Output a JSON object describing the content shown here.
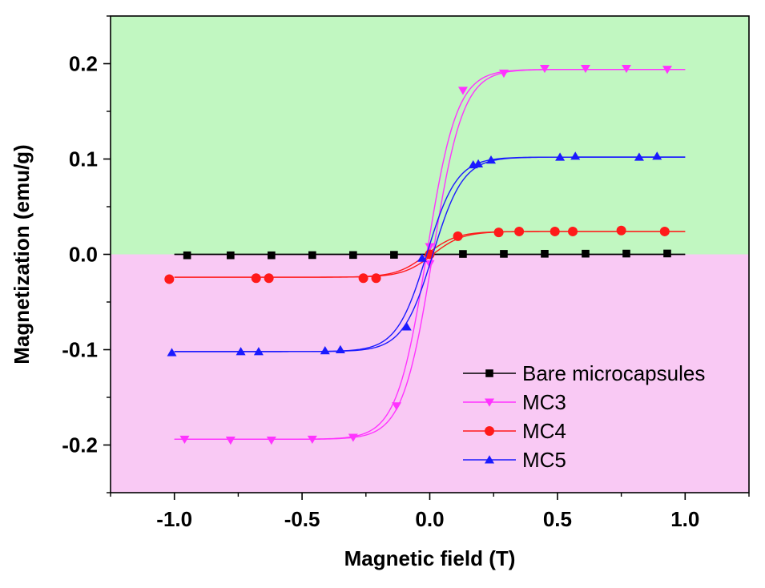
{
  "chart_data": {
    "type": "line",
    "title": "",
    "xlabel": "Magnetic field (T)",
    "ylabel": "Magnetization (emu/g)",
    "xlim": [
      -1.25,
      1.25
    ],
    "ylim": [
      -0.25,
      0.25
    ],
    "x_ticks": [
      -1.0,
      -0.5,
      0.0,
      0.5,
      1.0
    ],
    "x_tick_labels": [
      "-1.0",
      "-0.5",
      "0.0",
      "0.5",
      "1.0"
    ],
    "y_ticks": [
      -0.2,
      -0.1,
      0.0,
      0.1,
      0.2
    ],
    "y_tick_labels": [
      "-0.2",
      "-0.1",
      "0.0",
      "0.1",
      "0.2"
    ],
    "background_regions": [
      {
        "name": "positive",
        "y_from": 0.0,
        "y_to": 0.25,
        "color": "#c1f7c1"
      },
      {
        "name": "negative",
        "y_from": -0.25,
        "y_to": 0.0,
        "color": "#f9c9f4"
      }
    ],
    "legend_position": "bottom-right",
    "series": [
      {
        "name": "Bare microcapsules",
        "color": "#000000",
        "marker": "square",
        "saturation": 0.0,
        "loop_points": [
          [
            -1.0,
            -0.001
          ],
          [
            -0.5,
            -0.0008
          ],
          [
            0.0,
            0.0
          ],
          [
            0.5,
            0.0008
          ],
          [
            1.0,
            0.001
          ]
        ],
        "markers": [
          [
            -0.95,
            -0.001
          ],
          [
            -0.78,
            -0.001
          ],
          [
            -0.62,
            -0.001
          ],
          [
            -0.46,
            -0.0008
          ],
          [
            -0.3,
            -0.0007
          ],
          [
            -0.14,
            -0.0005
          ],
          [
            0.13,
            0.0004
          ],
          [
            0.29,
            0.0005
          ],
          [
            0.45,
            0.0006
          ],
          [
            0.61,
            0.0007
          ],
          [
            0.77,
            0.0008
          ],
          [
            0.93,
            0.0009
          ]
        ]
      },
      {
        "name": "MC3",
        "color": "#ff33ff",
        "marker": "triangle-down",
        "saturation": 0.194,
        "loop_points": [
          [
            -1.0,
            -0.194
          ],
          [
            -0.4,
            -0.193
          ],
          [
            -0.25,
            -0.188
          ],
          [
            -0.15,
            -0.162
          ],
          [
            -0.05,
            -0.07
          ],
          [
            0.0,
            0.0
          ],
          [
            0.05,
            0.07
          ],
          [
            0.15,
            0.162
          ],
          [
            0.25,
            0.188
          ],
          [
            0.4,
            0.193
          ],
          [
            1.0,
            0.194
          ]
        ],
        "markers": [
          [
            -0.96,
            -0.194
          ],
          [
            -0.78,
            -0.195
          ],
          [
            -0.62,
            -0.195
          ],
          [
            -0.46,
            -0.194
          ],
          [
            -0.3,
            -0.192
          ],
          [
            -0.13,
            -0.159
          ],
          [
            0.0,
            0.008
          ],
          [
            0.0,
            -0.01
          ],
          [
            0.13,
            0.172
          ],
          [
            0.29,
            0.19
          ],
          [
            0.45,
            0.195
          ],
          [
            0.61,
            0.195
          ],
          [
            0.77,
            0.195
          ],
          [
            0.93,
            0.194
          ]
        ]
      },
      {
        "name": "MC4",
        "color": "#ff1a1a",
        "marker": "circle",
        "saturation": 0.024,
        "loop_points": [
          [
            -1.0,
            -0.026
          ],
          [
            -0.3,
            -0.025
          ],
          [
            -0.15,
            -0.022
          ],
          [
            -0.05,
            -0.01
          ],
          [
            0.0,
            0.0
          ],
          [
            0.05,
            0.01
          ],
          [
            0.15,
            0.022
          ],
          [
            0.3,
            0.024
          ],
          [
            1.0,
            0.024
          ]
        ],
        "markers": [
          [
            -1.02,
            -0.026
          ],
          [
            -0.68,
            -0.025
          ],
          [
            -0.63,
            -0.025
          ],
          [
            -0.26,
            -0.025
          ],
          [
            -0.21,
            -0.025
          ],
          [
            0.0,
            0.0
          ],
          [
            0.11,
            0.019
          ],
          [
            0.27,
            0.023
          ],
          [
            0.35,
            0.024
          ],
          [
            0.49,
            0.024
          ],
          [
            0.56,
            0.024
          ],
          [
            0.75,
            0.025
          ],
          [
            0.92,
            0.024
          ]
        ]
      },
      {
        "name": "MC5",
        "color": "#1a1aff",
        "marker": "triangle-up",
        "saturation": 0.102,
        "loop_points": [
          [
            -1.0,
            -0.103
          ],
          [
            -0.4,
            -0.1
          ],
          [
            -0.2,
            -0.09
          ],
          [
            -0.1,
            -0.065
          ],
          [
            0.0,
            0.0
          ],
          [
            0.1,
            0.065
          ],
          [
            0.2,
            0.09
          ],
          [
            0.4,
            0.1
          ],
          [
            1.0,
            0.102
          ]
        ],
        "markers": [
          [
            -1.01,
            -0.103
          ],
          [
            -0.74,
            -0.102
          ],
          [
            -0.67,
            -0.102
          ],
          [
            -0.41,
            -0.101
          ],
          [
            -0.35,
            -0.1
          ],
          [
            -0.09,
            -0.076
          ],
          [
            -0.03,
            -0.004
          ],
          [
            0.17,
            0.094
          ],
          [
            0.19,
            0.095
          ],
          [
            0.24,
            0.099
          ],
          [
            0.51,
            0.102
          ],
          [
            0.57,
            0.103
          ],
          [
            0.82,
            0.102
          ],
          [
            0.89,
            0.103
          ]
        ]
      }
    ]
  }
}
